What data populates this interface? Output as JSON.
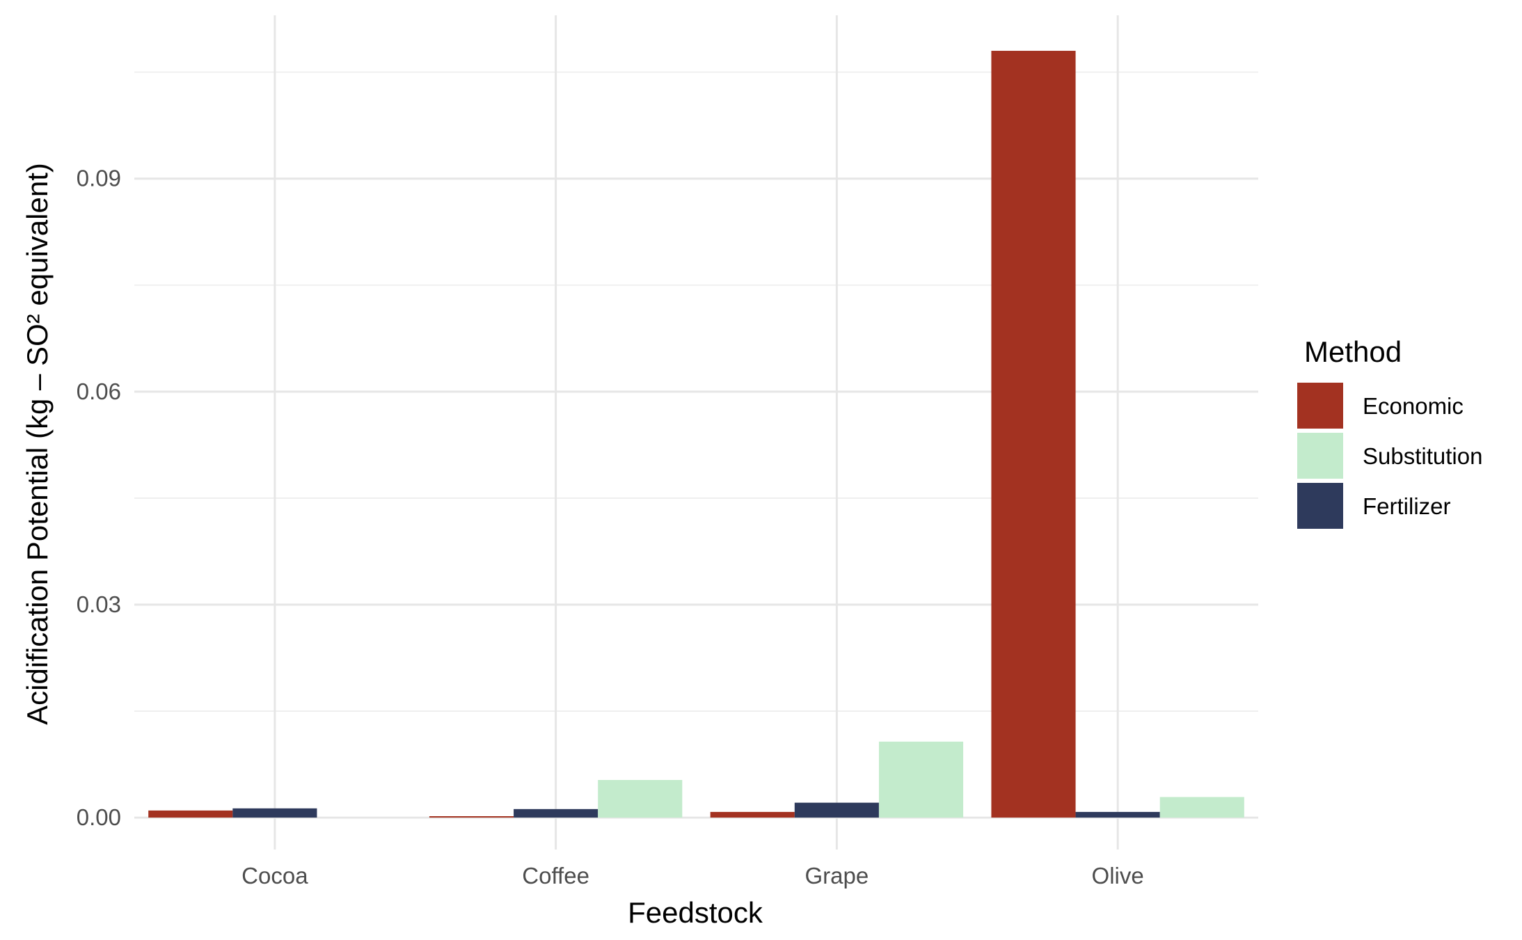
{
  "chart_data": {
    "type": "bar",
    "xlabel": "Feedstock",
    "ylabel": "Acidification Potential (kg – SO² equivalent)",
    "categories": [
      "Cocoa",
      "Coffee",
      "Grape",
      "Olive"
    ],
    "ylim": [
      -0.0045,
      0.113
    ],
    "yticks": [
      0.0,
      0.03,
      0.06,
      0.09
    ],
    "ytick_labels": [
      "0.00",
      "0.03",
      "0.06",
      "0.09"
    ],
    "grid": true,
    "legend": {
      "title": "Method",
      "position": "right"
    },
    "series": [
      {
        "name": "Economic",
        "color": "#a33221",
        "values": [
          0.001,
          0.0002,
          0.0008,
          0.108
        ]
      },
      {
        "name": "Substitution",
        "color": "#c3ebcc",
        "values": [
          0.0,
          0.0053,
          0.0107,
          0.0029
        ]
      },
      {
        "name": "Fertilizer",
        "color": "#2e3a5c",
        "values": [
          0.0013,
          0.0012,
          0.0021,
          0.0008
        ]
      }
    ]
  }
}
